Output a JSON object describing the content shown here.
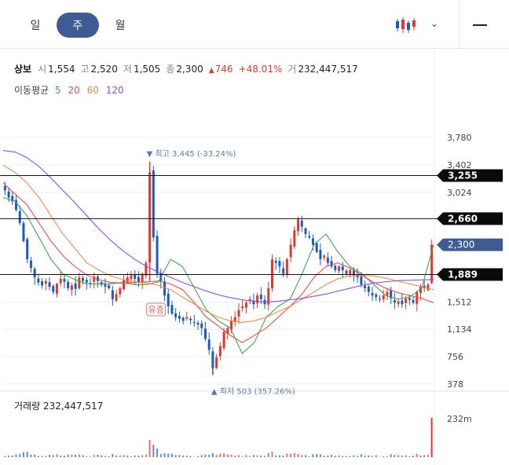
{
  "tabs": [
    {
      "label": "일",
      "active": false
    },
    {
      "label": "주",
      "active": true
    },
    {
      "label": "월",
      "active": false
    }
  ],
  "toolbar": {
    "chart_type_icon": "candlestick-icon",
    "menu_icon": "menu-icon"
  },
  "quote": {
    "name": "상보",
    "open_label": "시",
    "open": "1,554",
    "high_label": "고",
    "high": "2,520",
    "low_label": "저",
    "low": "1,505",
    "close_label": "종",
    "close": "2,300",
    "change": "746",
    "change_pct": "+48.01%",
    "volume_label": "거",
    "volume": "232,447,517"
  },
  "ma_legend": {
    "title": "이동평균",
    "items": [
      {
        "label": "5",
        "color": "#3aa845"
      },
      {
        "label": "20",
        "color": "#e94848"
      },
      {
        "label": "60",
        "color": "#f0883e"
      },
      {
        "label": "120",
        "color": "#8a4be8"
      }
    ]
  },
  "colors": {
    "up": "#e0382f",
    "down": "#1e5bb8",
    "accent": "#3e5b93"
  },
  "chart_data": {
    "type": "candlestick",
    "y_axis_ticks": [
      "3,780",
      "3,402",
      "3,024",
      "1,512",
      "1,134",
      "756",
      "378"
    ],
    "ylim": [
      378,
      3780
    ],
    "horizontal_lines": [
      {
        "label": "3,255",
        "value": 3255
      },
      {
        "label": "2,660",
        "value": 2660
      },
      {
        "label": "1,889",
        "value": 1889
      }
    ],
    "current_price": {
      "label": "2,300",
      "value": 2300
    },
    "high_marker": {
      "label": "최고 3,445 (-33.24%)",
      "value": 3445
    },
    "low_marker": {
      "label": "최저 503 (357.26%)",
      "value": 503
    },
    "event_label": "유증",
    "price_path": [
      3050,
      2950,
      2900,
      2780,
      2600,
      2350,
      2100,
      1980,
      1850,
      1780,
      1740,
      1800,
      1720,
      1650,
      1760,
      1830,
      1790,
      1700,
      1740,
      1690,
      1850,
      1800,
      1780,
      1760,
      1860,
      1800,
      1750,
      1720,
      1700,
      1550,
      1620,
      1700,
      1810,
      1850,
      1880,
      1830,
      1790,
      1900,
      2050,
      3300,
      2400,
      1900,
      1800,
      1600,
      1450,
      1350,
      1300,
      1280,
      1250,
      1300,
      1260,
      1230,
      1200,
      1150,
      1000,
      850,
      600,
      750,
      900,
      1100,
      1150,
      1250,
      1300,
      1400,
      1450,
      1500,
      1550,
      1480,
      1600,
      1550,
      1480,
      1700,
      2100,
      2050,
      2000,
      1900,
      2100,
      2300,
      2500,
      2650,
      2550,
      2450,
      2400,
      2300,
      2200,
      2100,
      2150,
      2050,
      2000,
      1950,
      2000,
      1950,
      1900,
      1950,
      1880,
      1850,
      1750,
      1700,
      1650,
      1600,
      1580,
      1550,
      1600,
      1650,
      1560,
      1500,
      1520,
      1480,
      1560,
      1540,
      1500,
      1650,
      1720,
      1700,
      1750,
      2300
    ],
    "ma": {
      "ma5": [
        2950,
        2900,
        2700,
        2400,
        2100,
        1900,
        1820,
        1760,
        1760,
        1760,
        1780,
        1750,
        1750,
        1790,
        2100,
        2000,
        1700,
        1400,
        1250,
        1150,
        800,
        950,
        1300,
        1450,
        1550,
        1900,
        2300,
        2450,
        2200,
        2000,
        1900,
        1750,
        1600,
        1550,
        1580,
        1700,
        2300
      ],
      "ma20": [
        3150,
        3000,
        2850,
        2600,
        2350,
        2150,
        2000,
        1880,
        1820,
        1780,
        1770,
        1780,
        1790,
        1800,
        1760,
        1680,
        1500,
        1300,
        1180,
        1050,
        950,
        1050,
        1150,
        1300,
        1450,
        1620,
        1850,
        2000,
        2050,
        1980,
        1880,
        1780,
        1700,
        1640,
        1600,
        1560,
        1500
      ],
      "ma60": [
        3400,
        3300,
        3150,
        2950,
        2700,
        2450,
        2250,
        2050,
        1950,
        1870,
        1820,
        1790,
        1770,
        1740,
        1680,
        1580,
        1480,
        1380,
        1300,
        1250,
        1230,
        1250,
        1300,
        1380,
        1450,
        1550,
        1650,
        1750,
        1830,
        1870,
        1880,
        1870,
        1840,
        1800,
        1760,
        1720,
        1680
      ],
      "ma120": [
        3600,
        3580,
        3500,
        3380,
        3220,
        3050,
        2880,
        2700,
        2520,
        2360,
        2220,
        2100,
        2000,
        1920,
        1850,
        1780,
        1720,
        1660,
        1610,
        1570,
        1540,
        1520,
        1510,
        1520,
        1540,
        1560,
        1590,
        1620,
        1660,
        1700,
        1740,
        1770,
        1790,
        1805,
        1810,
        1815,
        1820
      ]
    },
    "volume": {
      "label": "거래량",
      "value": "232,447,517",
      "axis_label": "232m"
    }
  }
}
